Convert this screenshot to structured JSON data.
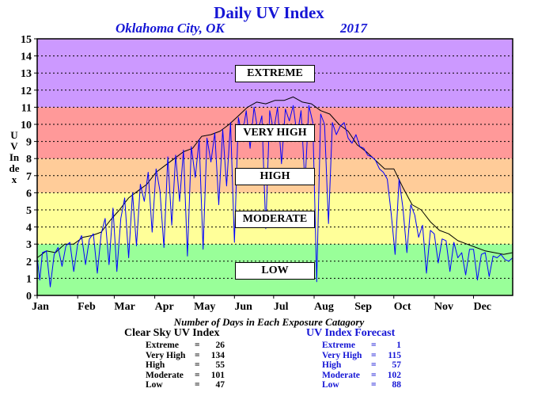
{
  "chart_data": {
    "type": "line",
    "title": "Daily UV Index",
    "location": "Oklahoma City, OK",
    "year": "2017",
    "ylabel": "UV Index",
    "ylim": [
      0,
      15
    ],
    "yticks": [
      "0",
      "1",
      "2",
      "3",
      "4",
      "5",
      "6",
      "7",
      "8",
      "9",
      "10",
      "11",
      "12",
      "13",
      "14",
      "15"
    ],
    "xlim": [
      1,
      365
    ],
    "month_labels": [
      "Jan",
      "Feb",
      "Mar",
      "Apr",
      "May",
      "Jun",
      "Jul",
      "Aug",
      "Sep",
      "Oct",
      "Nov",
      "Dec"
    ],
    "month_start_days": [
      1,
      32,
      60,
      91,
      121,
      152,
      182,
      213,
      244,
      274,
      305,
      335
    ],
    "grid": "dotted-horizontal",
    "bands": [
      {
        "label": "LOW",
        "from": 0,
        "to": 3,
        "color": "#99ff99"
      },
      {
        "label": "MODERATE",
        "from": 3,
        "to": 6,
        "color": "#ffff99"
      },
      {
        "label": "HIGH",
        "from": 6,
        "to": 8,
        "color": "#ffcc99"
      },
      {
        "label": "VERY HIGH",
        "from": 8,
        "to": 11,
        "color": "#ff9999"
      },
      {
        "label": "EXTREME",
        "from": 11,
        "to": 15,
        "color": "#cc99ff"
      }
    ],
    "band_label_y": {
      "LOW": 1.3,
      "MODERATE": 4.4,
      "HIGH": 6.7,
      "VERY HIGH": 9.2,
      "EXTREME": 12.8
    },
    "series": [
      {
        "name": "Clear Sky UV Index",
        "color": "#000000",
        "x": [
          1,
          8,
          15,
          22,
          29,
          36,
          43,
          50,
          57,
          64,
          71,
          78,
          85,
          92,
          99,
          106,
          113,
          120,
          127,
          134,
          141,
          148,
          155,
          162,
          169,
          176,
          183,
          190,
          197,
          204,
          211,
          218,
          225,
          232,
          239,
          246,
          253,
          260,
          267,
          274,
          281,
          288,
          295,
          302,
          309,
          316,
          323,
          330,
          337,
          344,
          351,
          358,
          365
        ],
        "y": [
          2.2,
          2.6,
          2.5,
          3.0,
          3.0,
          3.4,
          3.5,
          3.7,
          4.4,
          5.0,
          5.7,
          6.1,
          6.5,
          7.2,
          7.6,
          8.0,
          8.4,
          8.6,
          9.3,
          9.4,
          9.6,
          10.0,
          10.5,
          11.0,
          11.3,
          11.2,
          11.4,
          11.4,
          11.6,
          11.3,
          11.2,
          10.8,
          10.6,
          10.0,
          9.6,
          8.8,
          8.4,
          7.9,
          7.4,
          7.4,
          6.3,
          5.3,
          5.0,
          4.3,
          3.8,
          3.6,
          3.2,
          3.0,
          2.8,
          2.6,
          2.5,
          2.4,
          2.5
        ]
      },
      {
        "name": "UV Index Forecast",
        "color": "#0000ff",
        "x": [
          1,
          3,
          5,
          8,
          11,
          14,
          17,
          20,
          23,
          26,
          29,
          32,
          35,
          38,
          41,
          44,
          47,
          50,
          53,
          56,
          59,
          62,
          65,
          68,
          71,
          74,
          77,
          80,
          83,
          86,
          89,
          92,
          95,
          98,
          101,
          104,
          107,
          110,
          113,
          116,
          119,
          122,
          125,
          128,
          131,
          134,
          137,
          140,
          143,
          146,
          149,
          152,
          155,
          158,
          161,
          164,
          167,
          170,
          173,
          176,
          179,
          182,
          185,
          188,
          191,
          194,
          197,
          200,
          203,
          206,
          209,
          212,
          215,
          218,
          221,
          224,
          227,
          230,
          233,
          236,
          239,
          242,
          245,
          248,
          251,
          254,
          257,
          260,
          263,
          266,
          269,
          272,
          275,
          278,
          281,
          284,
          287,
          290,
          293,
          296,
          299,
          302,
          305,
          308,
          311,
          314,
          317,
          320,
          323,
          326,
          329,
          332,
          335,
          338,
          341,
          344,
          347,
          350,
          353,
          356,
          359,
          362,
          365
        ],
        "y": [
          2.2,
          0.9,
          2.5,
          2.6,
          0.5,
          2.4,
          2.8,
          1.7,
          2.9,
          3.1,
          1.4,
          3.0,
          3.5,
          1.8,
          3.3,
          3.6,
          1.3,
          3.6,
          4.5,
          1.8,
          5.1,
          1.4,
          4.5,
          5.7,
          2.2,
          6.0,
          2.9,
          6.5,
          5.5,
          7.2,
          3.7,
          7.4,
          6.1,
          2.8,
          8.1,
          4.1,
          8.2,
          5.5,
          8.5,
          2.3,
          8.7,
          6.9,
          9.1,
          2.7,
          9.2,
          7.8,
          9.5,
          5.3,
          9.7,
          6.4,
          10.1,
          3.1,
          10.4,
          9.3,
          10.8,
          8.6,
          11.0,
          9.6,
          10.5,
          3.9,
          10.8,
          9.6,
          11.0,
          7.7,
          10.9,
          10.2,
          11.1,
          9.3,
          10.8,
          6.5,
          11.1,
          10.1,
          0.8,
          10.6,
          10.0,
          4.2,
          10.1,
          9.4,
          9.9,
          10.1,
          9.2,
          8.9,
          9.4,
          8.7,
          8.6,
          8.2,
          8.1,
          7.9,
          7.4,
          7.2,
          6.8,
          4.8,
          2.4,
          6.8,
          5.1,
          2.5,
          5.3,
          4.7,
          3.4,
          4.1,
          1.3,
          3.8,
          3.6,
          1.9,
          3.3,
          3.2,
          1.4,
          3.1,
          2.2,
          2.5,
          1.2,
          2.7,
          2.7,
          0.9,
          2.4,
          2.5,
          1.1,
          2.3,
          2.2,
          2.4,
          2.1,
          2.0,
          2.2
        ]
      }
    ]
  },
  "summary": {
    "caption": "Number of Days in Each Exposure Catagory",
    "clear_sky": {
      "title": "Clear Sky UV Index",
      "rows": [
        {
          "name": "Extreme",
          "eq": "=",
          "value": "26"
        },
        {
          "name": "Very High",
          "eq": "=",
          "value": "134"
        },
        {
          "name": "High",
          "eq": "=",
          "value": "55"
        },
        {
          "name": "Moderate",
          "eq": "=",
          "value": "101"
        },
        {
          "name": "Low",
          "eq": "=",
          "value": "47"
        }
      ]
    },
    "forecast": {
      "title": "UV Index Forecast",
      "rows": [
        {
          "name": "Extreme",
          "eq": "=",
          "value": "1"
        },
        {
          "name": "Very High",
          "eq": "=",
          "value": "115"
        },
        {
          "name": "High",
          "eq": "=",
          "value": "57"
        },
        {
          "name": "Moderate",
          "eq": "=",
          "value": "102"
        },
        {
          "name": "Low",
          "eq": "=",
          "value": "88"
        }
      ]
    }
  }
}
